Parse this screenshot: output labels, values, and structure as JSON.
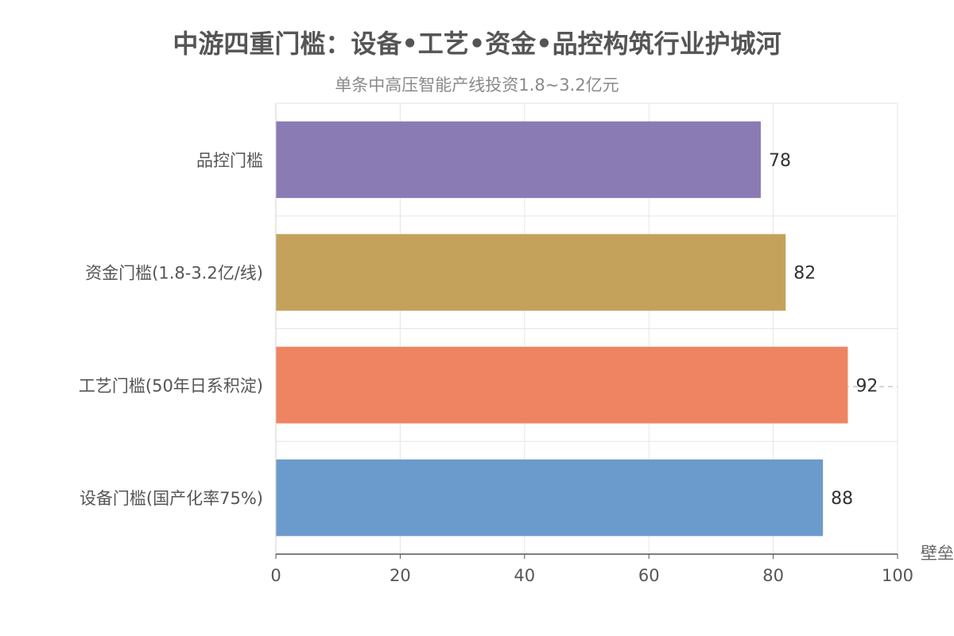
{
  "chart_data": {
    "type": "bar",
    "orientation": "horizontal",
    "title": "中游四重门槛：设备•工艺•资金•品控构筑行业护城河",
    "subtitle": "单条中高压智能产线投资1.8~3.2亿元",
    "xlabel": "壁垒",
    "ylabel": "",
    "categories": [
      "设备门槛(国产化率75%)",
      "工艺门槛(50年日系积淀)",
      "资金门槛(1.8-3.2亿/线)",
      "品控门槛"
    ],
    "values": [
      88,
      92,
      82,
      78
    ],
    "colors": [
      "#6b9bcc",
      "#ee8461",
      "#c4a25b",
      "#8b7bb5"
    ],
    "xlim": [
      0,
      100
    ],
    "xticks": [
      0,
      20,
      40,
      60,
      80,
      100
    ],
    "grid": true,
    "reference_line_category": "工艺门槛(50年日系积淀)",
    "legend": "none"
  }
}
